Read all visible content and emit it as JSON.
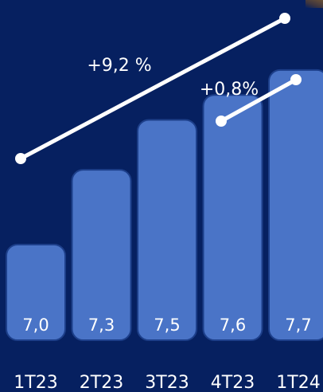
{
  "chart_data": {
    "type": "bar",
    "categories": [
      "1T23",
      "2T23",
      "3T23",
      "4T23",
      "1T24"
    ],
    "values": [
      7.0,
      7.3,
      7.5,
      7.6,
      7.7
    ],
    "value_labels": [
      "7,0",
      "7,3",
      "7,5",
      "7,6",
      "7,7"
    ],
    "colors": {
      "background": "#062060",
      "bar": "#4a74c7",
      "annotation": "#ffffff"
    },
    "annotations": [
      {
        "label": "+9,2 %",
        "from": "1T23",
        "to": "1T24"
      },
      {
        "label": "+0,8%",
        "from": "4T23",
        "to": "1T24"
      }
    ],
    "title": "",
    "xlabel": "",
    "ylabel": "",
    "grid": false
  }
}
